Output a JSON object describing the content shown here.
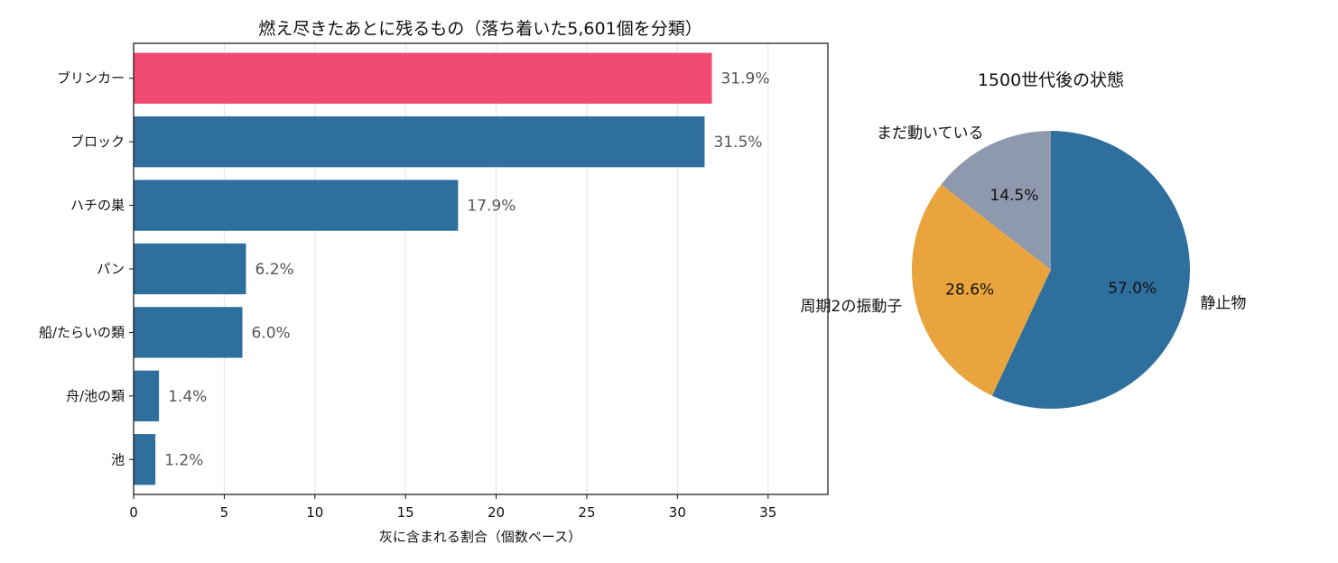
{
  "chart_data": [
    {
      "type": "bar",
      "orientation": "horizontal",
      "title": "燃え尽きたあとに残るもの（落ち着いた5,601個を分類）",
      "xlabel": "灰に含まれる割合（個数ベース）",
      "ylabel": "",
      "categories": [
        "ブリンカー",
        "ブロック",
        "ハチの巣",
        "パン",
        "船/たらいの類",
        "舟/池の類",
        "池"
      ],
      "values": [
        31.9,
        31.5,
        17.9,
        6.2,
        6.0,
        1.4,
        1.2
      ],
      "data_labels": [
        "31.9%",
        "31.5%",
        "17.9%",
        "6.2%",
        "6.0%",
        "1.4%",
        "1.2%"
      ],
      "xlim": [
        0,
        38.3
      ],
      "xticks": [
        0,
        5,
        10,
        15,
        20,
        25,
        30,
        35
      ],
      "grid": "x",
      "colors": [
        "#f04a72",
        "#2e6f9e",
        "#2e6f9e",
        "#2e6f9e",
        "#2e6f9e",
        "#2e6f9e",
        "#2e6f9e"
      ]
    },
    {
      "type": "pie",
      "title": "1500世代後の状態",
      "labels": [
        "まだ動いている",
        "周期2の振動子",
        "静止物"
      ],
      "values": [
        14.5,
        28.6,
        57.0
      ],
      "data_labels": [
        "14.5%",
        "28.6%",
        "57.0%"
      ],
      "colors": [
        "#8e99ae",
        "#e9a43e",
        "#2e6f9e"
      ]
    }
  ]
}
